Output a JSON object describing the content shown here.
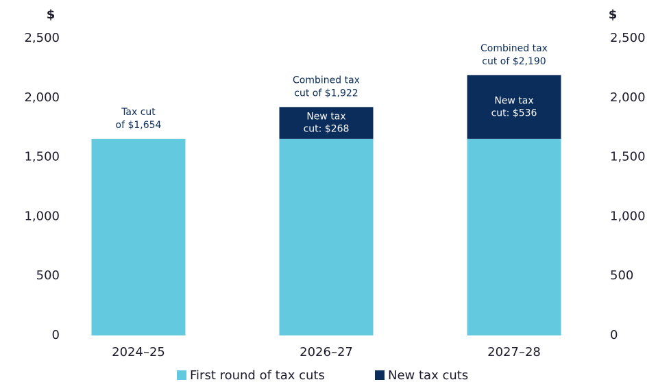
{
  "chart_data": {
    "type": "bar",
    "stacked": true,
    "categories": [
      "2024–25",
      "2026–27",
      "2027–28"
    ],
    "series": [
      {
        "name": "First round of tax cuts",
        "color": "#62c9de",
        "values": [
          1654,
          1654,
          1654
        ]
      },
      {
        "name": "New tax cuts",
        "color": "#0b2d5b",
        "values": [
          null,
          268,
          536
        ],
        "value_labels": [
          null,
          [
            "New tax",
            "cut: $268"
          ],
          [
            "New tax",
            "cut: $536"
          ]
        ]
      }
    ],
    "annotations": [
      [
        "Tax cut",
        "of $1,654"
      ],
      [
        "Combined tax",
        "cut of $1,922"
      ],
      [
        "Combined tax",
        "cut of $2,190"
      ]
    ],
    "ylabel": "$",
    "y2label": "$",
    "ylim": [
      0,
      2500
    ],
    "yticks": [
      0,
      500,
      {
        "value": 1000,
        "label": "1,000"
      },
      {
        "value": 1500,
        "label": "1,500"
      },
      {
        "value": 2000,
        "label": "2,000"
      },
      {
        "value": 2500,
        "label": "2,500"
      }
    ],
    "y2lim": [
      0,
      2500
    ],
    "y2ticks": [
      0,
      500,
      {
        "value": 1000,
        "label": "1,000"
      },
      {
        "value": 1500,
        "label": "1,500"
      },
      {
        "value": 2000,
        "label": "2,000"
      },
      {
        "value": 2500,
        "label": "2,500"
      }
    ],
    "legend": "bottom",
    "grid": false
  }
}
